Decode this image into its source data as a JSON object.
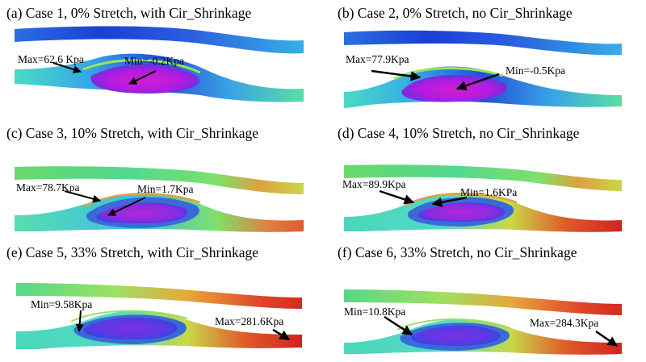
{
  "figure": {
    "panels": [
      {
        "id": "a",
        "title": "(a) Case 1, 0% Stretch, with Cir_Shrinkage",
        "max_label": "Max=62.6 Kpa",
        "min_label": "Min=-0.2Kpa",
        "palette": [
          "#1a3fd6",
          "#2f7de0",
          "#41c6e6",
          "#46e0b0",
          "#7ee06a",
          "#c9d84a",
          "#e0a83d",
          "#8a2be2",
          "#d21fd0"
        ]
      },
      {
        "id": "b",
        "title": "(b) Case 2, 0% Stretch, no Cir_Shrinkage",
        "max_label": "Max=77.9Kpa",
        "min_label": "Min=-0.5Kpa"
      },
      {
        "id": "c",
        "title": "(c) Case 3, 10% Stretch, with Cir_Shrinkage",
        "max_label": "Max=78.7Kpa",
        "min_label": "Min=1.7Kpa"
      },
      {
        "id": "d",
        "title": "(d) Case 4, 10% Stretch, no Cir_Shrinkage",
        "max_label": "Max=89.9Kpa",
        "min_label": "Min=1.6KPa"
      },
      {
        "id": "e",
        "title": "(e) Case 5, 33% Stretch, with Cir_Shrinkage",
        "max_label": "Max=281.6Kpa",
        "min_label": "Min=9.58Kpa"
      },
      {
        "id": "f",
        "title": "(f) Case 6, 33% Stretch, no Cir_Shrinkage",
        "max_label": "Max=284.3Kpa",
        "min_label": "Min=10.8Kpa"
      }
    ]
  }
}
